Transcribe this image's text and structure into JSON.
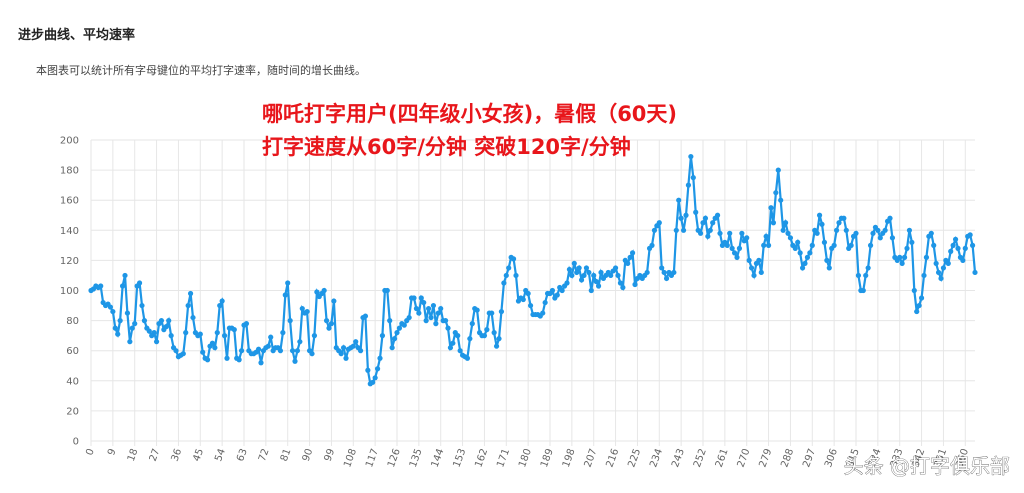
{
  "header": {
    "title": "进步曲线、平均速率",
    "description": "本图表可以统计所有字母键位的平均打字速率，随时间的增长曲线。"
  },
  "watermark": "头条 @打字俱乐部",
  "chart_data": {
    "type": "line",
    "annotations": [
      "哪吒打字用户(四年级小女孩)，暑假（60天)",
      "打字速度从60字/分钟 突破120字/分钟"
    ],
    "color": "#1e96e6",
    "grid": true,
    "xlim": [
      0,
      364
    ],
    "ylim": [
      0,
      200
    ],
    "yticks": [
      0,
      20,
      40,
      60,
      80,
      100,
      120,
      140,
      160,
      180,
      200
    ],
    "xticks": [
      0,
      9,
      18,
      27,
      36,
      45,
      54,
      63,
      72,
      81,
      90,
      99,
      108,
      117,
      126,
      135,
      144,
      153,
      162,
      171,
      180,
      189,
      198,
      207,
      216,
      225,
      234,
      243,
      252,
      261,
      270,
      279,
      288,
      297,
      306,
      315,
      324,
      333,
      342,
      351,
      360
    ],
    "x": [
      0,
      1,
      2,
      3,
      4,
      5,
      6,
      7,
      8,
      9,
      10,
      11,
      12,
      13,
      14,
      15,
      16,
      17,
      18,
      19,
      20,
      21,
      22,
      23,
      24,
      25,
      26,
      27,
      28,
      29,
      30,
      31,
      32,
      33,
      34,
      35,
      36,
      37,
      38,
      39,
      40,
      41,
      42,
      43,
      44,
      45,
      46,
      47,
      48,
      49,
      50,
      51,
      52,
      53,
      54,
      55,
      56,
      57,
      58,
      59,
      60,
      61,
      62,
      63,
      64,
      65,
      66,
      67,
      68,
      69,
      70,
      71,
      72,
      73,
      74,
      75,
      76,
      77,
      78,
      79,
      80,
      81,
      82,
      83,
      84,
      85,
      86,
      87,
      88,
      89,
      90,
      91,
      92,
      93,
      94,
      95,
      96,
      97,
      98,
      99,
      100,
      101,
      102,
      103,
      104,
      105,
      106,
      107,
      108,
      109,
      110,
      111,
      112,
      113,
      114,
      115,
      116,
      117,
      118,
      119,
      120,
      121,
      122,
      123,
      124,
      125,
      126,
      127,
      128,
      129,
      130,
      131,
      132,
      133,
      134,
      135,
      136,
      137,
      138,
      139,
      140,
      141,
      142,
      143,
      144,
      145,
      146,
      147,
      148,
      149,
      150,
      151,
      152,
      153,
      154,
      155,
      156,
      157,
      158,
      159,
      160,
      161,
      162,
      163,
      164,
      165,
      166,
      167,
      168,
      169,
      170,
      171,
      172,
      173,
      174,
      175,
      176,
      177,
      178,
      179,
      180,
      181,
      182,
      183,
      184,
      185,
      186,
      187,
      188,
      189,
      190,
      191,
      192,
      193,
      194,
      195,
      196,
      197,
      198,
      199,
      200,
      201,
      202,
      203,
      204,
      205,
      206,
      207,
      208,
      209,
      210,
      211,
      212,
      213,
      214,
      215,
      216,
      217,
      218,
      219,
      220,
      221,
      222,
      223,
      224,
      225,
      226,
      227,
      228,
      229,
      230,
      231,
      232,
      233,
      234,
      235,
      236,
      237,
      238,
      239,
      240,
      241,
      242,
      243,
      244,
      245,
      246,
      247,
      248,
      249,
      250,
      251,
      252,
      253,
      254,
      255,
      256,
      257,
      258,
      259,
      260,
      261,
      262,
      263,
      264,
      265,
      266,
      267,
      268,
      269,
      270,
      271,
      272,
      273,
      274,
      275,
      276,
      277,
      278,
      279,
      280,
      281,
      282,
      283,
      284,
      285,
      286,
      287,
      288,
      289,
      290,
      291,
      292,
      293,
      294,
      295,
      296,
      297,
      298,
      299,
      300,
      301,
      302,
      303,
      304,
      305,
      306,
      307,
      308,
      309,
      310,
      311,
      312,
      313,
      314,
      315,
      316,
      317,
      318,
      319,
      320,
      321,
      322,
      323,
      324,
      325,
      326,
      327,
      328,
      329,
      330,
      331,
      332,
      333,
      334,
      335,
      336,
      337,
      338,
      339,
      340,
      341,
      342,
      343,
      344,
      345,
      346,
      347,
      348,
      349,
      350,
      351,
      352,
      353,
      354,
      355,
      356,
      357,
      358,
      359,
      360,
      361,
      362,
      363,
      364
    ],
    "values": [
      100,
      101,
      103,
      102,
      103,
      92,
      90,
      91,
      89,
      86,
      75,
      71,
      80,
      103,
      110,
      85,
      66,
      75,
      78,
      103,
      105,
      90,
      80,
      75,
      73,
      70,
      72,
      66,
      78,
      80,
      74,
      76,
      80,
      70,
      62,
      60,
      56,
      57,
      58,
      72,
      90,
      98,
      82,
      72,
      70,
      71,
      59,
      55,
      54,
      63,
      65,
      62,
      72,
      90,
      93,
      70,
      55,
      75,
      75,
      74,
      55,
      54,
      60,
      77,
      78,
      60,
      58,
      58,
      59,
      61,
      52,
      60,
      62,
      63,
      69,
      60,
      62,
      62,
      60,
      72,
      97,
      105,
      80,
      60,
      53,
      60,
      66,
      88,
      85,
      86,
      60,
      58,
      70,
      99,
      96,
      98,
      100,
      80,
      75,
      78,
      93,
      62,
      60,
      58,
      62,
      55,
      61,
      62,
      63,
      66,
      62,
      60,
      82,
      83,
      47,
      38,
      39,
      42,
      48,
      55,
      70,
      100,
      100,
      80,
      62,
      68,
      72,
      75,
      78,
      77,
      80,
      82,
      95,
      95,
      88,
      85,
      95,
      92,
      80,
      88,
      82,
      90,
      78,
      85,
      88,
      80,
      80,
      75,
      62,
      65,
      72,
      70,
      60,
      57,
      56,
      55,
      68,
      78,
      88,
      87,
      72,
      70,
      70,
      74,
      85,
      85,
      72,
      63,
      68,
      86,
      105,
      110,
      115,
      122,
      121,
      110,
      93,
      95,
      94,
      100,
      98,
      90,
      84,
      84,
      84,
      83,
      85,
      92,
      98,
      98,
      100,
      95,
      97,
      102,
      100,
      103,
      105,
      114,
      110,
      118,
      112,
      115,
      107,
      110,
      115,
      112,
      100,
      110,
      106,
      103,
      112,
      108,
      110,
      112,
      110,
      113,
      115,
      110,
      105,
      102,
      120,
      118,
      122,
      125,
      104,
      108,
      110,
      108,
      110,
      112,
      128,
      130,
      140,
      143,
      145,
      115,
      112,
      108,
      112,
      110,
      112,
      140,
      160,
      148,
      140,
      150,
      170,
      189,
      175,
      152,
      140,
      138,
      145,
      148,
      136,
      140,
      145,
      148,
      150,
      138,
      130,
      132,
      130,
      138,
      128,
      125,
      122,
      128,
      138,
      133,
      135,
      120,
      115,
      110,
      118,
      120,
      112,
      130,
      136,
      130,
      155,
      145,
      165,
      180,
      160,
      140,
      145,
      138,
      135,
      130,
      128,
      132,
      125,
      115,
      118,
      122,
      125,
      130,
      140,
      138,
      150,
      144,
      132,
      120,
      115,
      128,
      130,
      140,
      145,
      148,
      148,
      140,
      128,
      130,
      136,
      138,
      110,
      100,
      100,
      110,
      115,
      130,
      138,
      142,
      140,
      135,
      138,
      140,
      146,
      148,
      135,
      122,
      120,
      122,
      118,
      122,
      128,
      140,
      132,
      100,
      86,
      90,
      95,
      110,
      122,
      136,
      138,
      130,
      118,
      112,
      108,
      115,
      120,
      118,
      126,
      130,
      134,
      128,
      122,
      120,
      128,
      136,
      137,
      130,
      112
    ]
  }
}
